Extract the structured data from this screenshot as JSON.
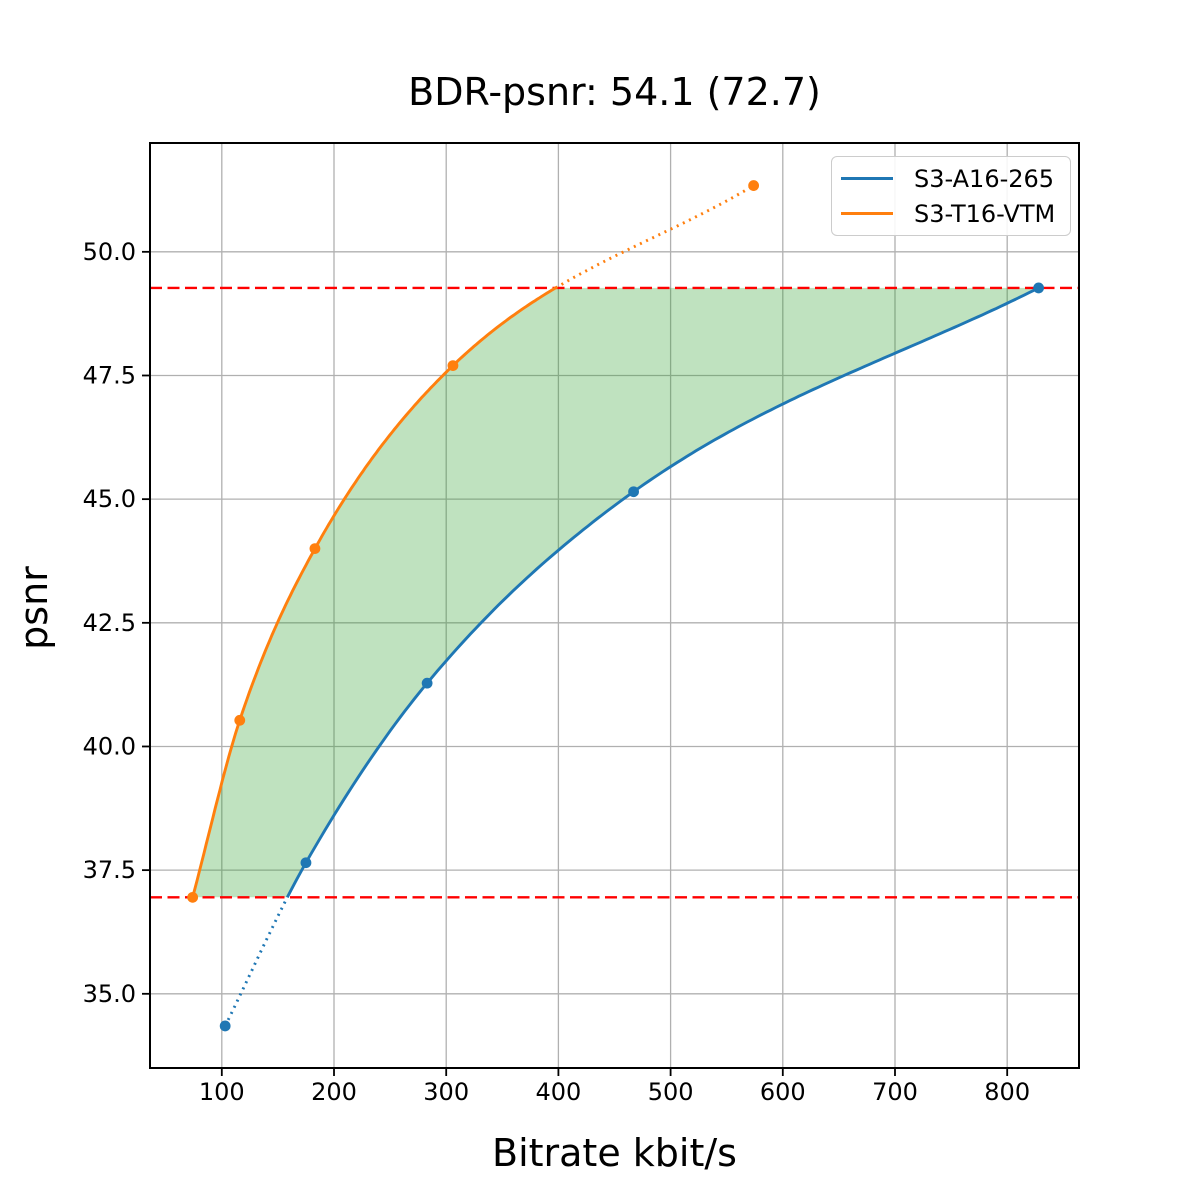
{
  "chart_data": {
    "type": "line",
    "title": "BDR-psnr: 54.1 (72.7)",
    "xlabel": "Bitrate kbit/s",
    "ylabel": "psnr",
    "xlim": [
      36,
      864
    ],
    "ylim": [
      33.5,
      52.2
    ],
    "xticks": [
      100,
      200,
      300,
      400,
      500,
      600,
      700,
      800
    ],
    "yticks": [
      35.0,
      37.5,
      40.0,
      42.5,
      45.0,
      47.5,
      50.0
    ],
    "grid": true,
    "grid_color": "#b0b0b0",
    "legend_position": "upper right",
    "series": [
      {
        "name": "S3-A16-265",
        "color": "#1f77b4",
        "marker": "circle",
        "x": [
          103,
          175,
          283,
          467,
          828
        ],
        "y": [
          34.35,
          37.65,
          41.28,
          45.15,
          49.27
        ]
      },
      {
        "name": "S3-T16-VTM",
        "color": "#ff7f0e",
        "marker": "circle",
        "x": [
          74,
          116,
          183,
          306,
          574
        ],
        "y": [
          36.95,
          40.53,
          44.0,
          47.7,
          51.34
        ]
      }
    ],
    "overlap_band": {
      "low": 36.95,
      "high": 49.27,
      "line_color": "#ff0000",
      "line_style": "dashed"
    },
    "shaded_region": {
      "color": "#2ca02c",
      "alpha": 0.3,
      "description": "area between curves inside overlap band"
    },
    "curve_style_note": "solid inside overlap band, dotted outside"
  }
}
